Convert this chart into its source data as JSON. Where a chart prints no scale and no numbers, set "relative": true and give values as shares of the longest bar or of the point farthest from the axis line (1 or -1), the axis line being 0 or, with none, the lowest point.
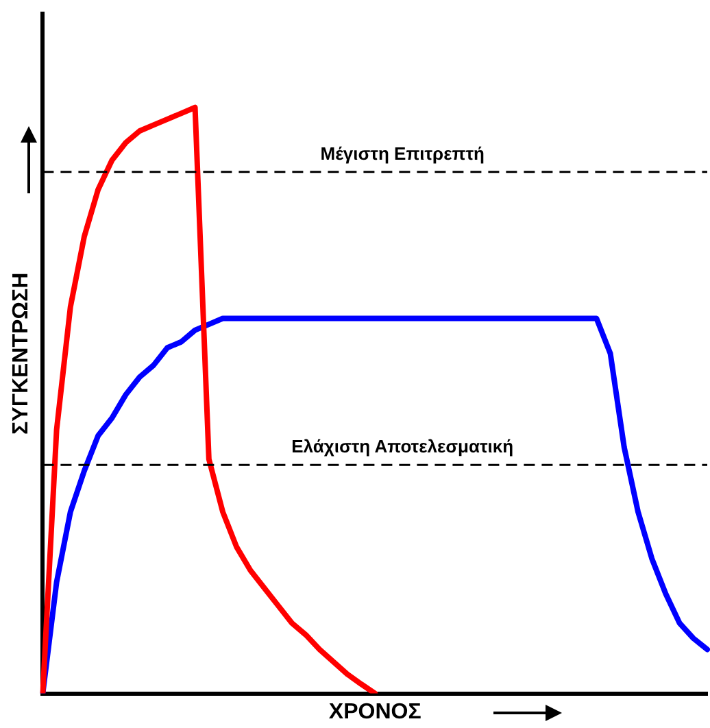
{
  "chart_data": {
    "type": "line",
    "relative": true,
    "xlabel": "ΧΡΟΝΟΣ",
    "ylabel": "ΣΥΓΚΕΝΤΡΩΣΗ",
    "legend": false,
    "marker": "none",
    "line_style": "solid",
    "categories": [
      null,
      null,
      null,
      null,
      null,
      null,
      null,
      null,
      null,
      null,
      null,
      null,
      null,
      null,
      null,
      null,
      null,
      null,
      null,
      null,
      null,
      null,
      null,
      null,
      null,
      null,
      null,
      null,
      null,
      null,
      null,
      null,
      null,
      null,
      null,
      null,
      null,
      null,
      null,
      null,
      null,
      null,
      null,
      null,
      null,
      null,
      null,
      null,
      null
    ],
    "series": [
      {
        "color": "#ff0000",
        "values": [
          0,
          0.45,
          0.66,
          0.78,
          0.86,
          0.91,
          0.94,
          0.96,
          0.97,
          0.98,
          0.99,
          1,
          0.4,
          0.31,
          0.25,
          0.21,
          0.18,
          0.15,
          0.12,
          0.1,
          0.075,
          0.054,
          0.033,
          0.016,
          0,
          null,
          null,
          null,
          null,
          null,
          null,
          null,
          null,
          null,
          null,
          null,
          null,
          null,
          null,
          null,
          null,
          null,
          null,
          null,
          null,
          null,
          null,
          null,
          null
        ]
      },
      {
        "color": "#0000ff",
        "values": [
          0,
          0.19,
          0.31,
          0.38,
          0.44,
          0.47,
          0.51,
          0.54,
          0.56,
          0.59,
          0.6,
          0.62,
          0.63,
          0.64,
          0.64,
          0.64,
          0.64,
          0.64,
          0.64,
          0.64,
          0.64,
          0.64,
          0.64,
          0.64,
          0.64,
          0.64,
          0.64,
          0.64,
          0.64,
          0.64,
          0.64,
          0.64,
          0.64,
          0.64,
          0.64,
          0.64,
          0.64,
          0.64,
          0.64,
          0.64,
          0.64,
          0.58,
          0.42,
          0.31,
          0.23,
          0.17,
          0.12,
          0.094,
          0.075
        ]
      }
    ],
    "ref_lines": [
      {
        "axis": "y",
        "value": 0.89,
        "label": "Μέγιστη Επιτρεπτή",
        "color": "#000000",
        "line_style": "dashed"
      },
      {
        "axis": "y",
        "value": 0.39,
        "label": "Ελάχιστη Αποτελεσματική",
        "color": "#000000",
        "line_style": "dashed"
      }
    ]
  }
}
